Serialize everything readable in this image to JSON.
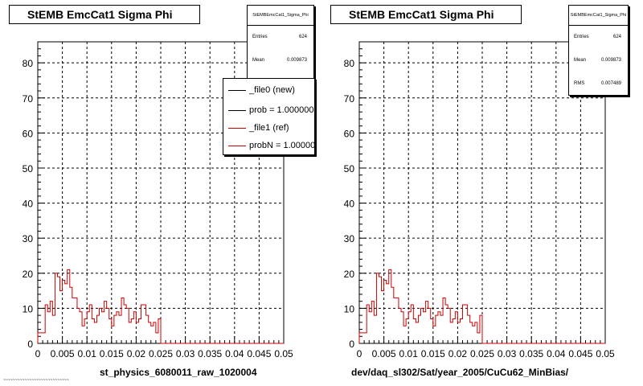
{
  "panels": [
    {
      "title": "StEMB EmcCat1 Sigma Phi",
      "stats": {
        "title": "StEMBEmcCat1_Sigma_Phi",
        "rows": [
          {
            "label": "Entries",
            "value": "624"
          },
          {
            "label": "Mean",
            "value": "0.009873"
          }
        ]
      },
      "legend": [
        {
          "label": "_file0 (new)",
          "color": "#000000"
        },
        {
          "label": "prob = 1.000000",
          "color": "#000000"
        },
        {
          "label": "_file1 (ref)",
          "color": "#cc0000"
        },
        {
          "label": "probN = 1.000000",
          "color": "#cc0000"
        }
      ],
      "file_label": "st_physics_6080011_raw_1020004"
    },
    {
      "title": "StEMB EmcCat1 Sigma Phi",
      "stats": {
        "title": "StEMBEmcCat1_Sigma_Phi",
        "rows": [
          {
            "label": "Entries",
            "value": "624"
          },
          {
            "label": "Mean",
            "value": "0.009873"
          },
          {
            "label": "RMS",
            "value": "0.007489"
          }
        ]
      },
      "file_label": "dev/daq_sl302/Sat/year_2005/CuCu62_MinBias/"
    }
  ],
  "corner_text": "~~~~~~~~~~~~~~~~~~~~~~~~~~~~",
  "chart_data": [
    {
      "type": "step",
      "title": "StEMB EmcCat1 Sigma Phi",
      "xlim": [
        0,
        0.05
      ],
      "ylim": [
        0,
        86
      ],
      "grid": true,
      "x_tick_labels": [
        "0",
        "0.005",
        "0.01",
        "0.015",
        "0.02",
        "0.025",
        "0.03",
        "0.035",
        "0.04",
        "0.045",
        "0.05"
      ],
      "y_tick_labels": [
        "0",
        "10",
        "20",
        "30",
        "40",
        "50",
        "60",
        "70",
        "80"
      ],
      "bin_width": 0.0005,
      "series": [
        {
          "name": "_file1 (ref)",
          "color": "#cc0000",
          "values": [
            3,
            3,
            3,
            11,
            9,
            12,
            8,
            20,
            19,
            15,
            18,
            17,
            21,
            16,
            13,
            13,
            10,
            9,
            5,
            7,
            9,
            11,
            7,
            6,
            8,
            10,
            9,
            12,
            10,
            7,
            5,
            8,
            9,
            8,
            13,
            11,
            10,
            6,
            7,
            9,
            6,
            7,
            11,
            11,
            8,
            6,
            5,
            6,
            3,
            7,
            0,
            0,
            0,
            0,
            0,
            0,
            0,
            0,
            0,
            0,
            0,
            0,
            0,
            0,
            0,
            0,
            0,
            0,
            0,
            0,
            0,
            0,
            0,
            0,
            0,
            0,
            0,
            0,
            0,
            0,
            0,
            0,
            0,
            0,
            0,
            0,
            0,
            0,
            0,
            0,
            0,
            0,
            0,
            0,
            0,
            0,
            0,
            0,
            0,
            0
          ]
        }
      ]
    },
    {
      "type": "step",
      "title": "StEMB EmcCat1 Sigma Phi",
      "xlim": [
        0,
        0.05
      ],
      "ylim": [
        0,
        86
      ],
      "grid": true,
      "x_tick_labels": [
        "0",
        "0.005",
        "0.01",
        "0.015",
        "0.02",
        "0.025",
        "0.03",
        "0.035",
        "0.04",
        "0.045",
        "0.05"
      ],
      "y_tick_labels": [
        "0",
        "10",
        "20",
        "30",
        "40",
        "50",
        "60",
        "70",
        "80"
      ],
      "bin_width": 0.0005,
      "series": [
        {
          "color": "#cc0000",
          "values": [
            3,
            3,
            3,
            11,
            9,
            12,
            8,
            20,
            19,
            15,
            18,
            17,
            21,
            16,
            13,
            13,
            10,
            9,
            5,
            7,
            9,
            11,
            7,
            6,
            8,
            10,
            9,
            12,
            10,
            7,
            5,
            8,
            9,
            8,
            13,
            11,
            10,
            6,
            7,
            9,
            6,
            7,
            11,
            11,
            8,
            6,
            5,
            6,
            3,
            8,
            0,
            0,
            0,
            0,
            0,
            0,
            0,
            0,
            0,
            0,
            0,
            0,
            0,
            0,
            0,
            0,
            0,
            0,
            0,
            0,
            0,
            0,
            0,
            0,
            0,
            0,
            0,
            0,
            0,
            0,
            0,
            0,
            0,
            0,
            0,
            0,
            0,
            0,
            0,
            0,
            0,
            0,
            0,
            0,
            0,
            0,
            0,
            0,
            0,
            0
          ]
        }
      ]
    }
  ]
}
